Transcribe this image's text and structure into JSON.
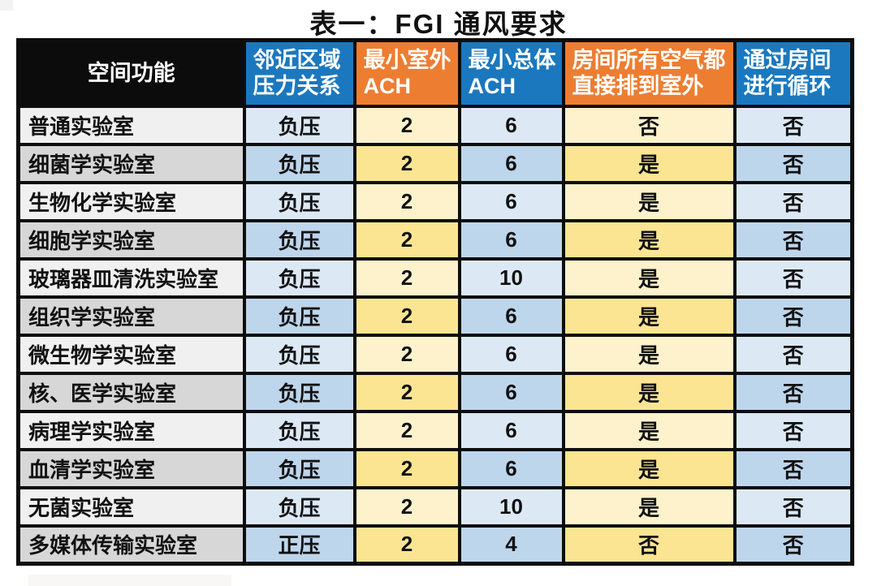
{
  "title": "表一：FGI 通风要求",
  "table": {
    "columns": [
      {
        "key": "name",
        "label": "空间功能",
        "header_color": "#0c0c0c",
        "body_style": "gray"
      },
      {
        "key": "pressure",
        "label": "邻近区域\n压力关系",
        "header_color": "#1b78be",
        "body_style": "blue"
      },
      {
        "key": "min_outdoor_ach",
        "label": "最小室外\nACH",
        "header_color": "#ed7d31",
        "body_style": "yellow"
      },
      {
        "key": "min_total_ach",
        "label": "最小总体\nACH",
        "header_color": "#1b78be",
        "body_style": "blue"
      },
      {
        "key": "exhaust_outdoor",
        "label": "房间所有空气都\n直接排到室外",
        "header_color": "#ed7d31",
        "body_style": "yellow"
      },
      {
        "key": "recirculate",
        "label": "通过房间\n进行循环",
        "header_color": "#1b78be",
        "body_style": "blue"
      }
    ],
    "rows": [
      {
        "name": "普通实验室",
        "pressure": "负压",
        "min_outdoor_ach": "2",
        "min_total_ach": "6",
        "exhaust_outdoor": "否",
        "recirculate": "否"
      },
      {
        "name": "细菌学实验室",
        "pressure": "负压",
        "min_outdoor_ach": "2",
        "min_total_ach": "6",
        "exhaust_outdoor": "是",
        "recirculate": "否"
      },
      {
        "name": "生物化学实验室",
        "pressure": "负压",
        "min_outdoor_ach": "2",
        "min_total_ach": "6",
        "exhaust_outdoor": "是",
        "recirculate": "否"
      },
      {
        "name": "细胞学实验室",
        "pressure": "负压",
        "min_outdoor_ach": "2",
        "min_total_ach": "6",
        "exhaust_outdoor": "是",
        "recirculate": "否"
      },
      {
        "name": "玻璃器皿清洗实验室",
        "pressure": "负压",
        "min_outdoor_ach": "2",
        "min_total_ach": "10",
        "exhaust_outdoor": "是",
        "recirculate": "否"
      },
      {
        "name": "组织学实验室",
        "pressure": "负压",
        "min_outdoor_ach": "2",
        "min_total_ach": "6",
        "exhaust_outdoor": "是",
        "recirculate": "否"
      },
      {
        "name": "微生物学实验室",
        "pressure": "负压",
        "min_outdoor_ach": "2",
        "min_total_ach": "6",
        "exhaust_outdoor": "是",
        "recirculate": "否"
      },
      {
        "name": "核、医学实验室",
        "pressure": "负压",
        "min_outdoor_ach": "2",
        "min_total_ach": "6",
        "exhaust_outdoor": "是",
        "recirculate": "否"
      },
      {
        "name": "病理学实验室",
        "pressure": "负压",
        "min_outdoor_ach": "2",
        "min_total_ach": "6",
        "exhaust_outdoor": "是",
        "recirculate": "否"
      },
      {
        "name": "血清学实验室",
        "pressure": "负压",
        "min_outdoor_ach": "2",
        "min_total_ach": "6",
        "exhaust_outdoor": "是",
        "recirculate": "否"
      },
      {
        "name": "无菌实验室",
        "pressure": "负压",
        "min_outdoor_ach": "2",
        "min_total_ach": "10",
        "exhaust_outdoor": "是",
        "recirculate": "否"
      },
      {
        "name": "多媒体传输实验室",
        "pressure": "正压",
        "min_outdoor_ach": "2",
        "min_total_ach": "4",
        "exhaust_outdoor": "否",
        "recirculate": "否"
      }
    ]
  },
  "colors": {
    "header_black": "#0c0c0c",
    "header_blue": "#1b78be",
    "header_orange": "#ed7d31",
    "row_gray_light": "#f1f0f0",
    "row_gray_dark": "#d8d7d7",
    "row_blue_light": "#dce9f5",
    "row_blue_dark": "#bed6ec",
    "row_yellow_light": "#fef2cc",
    "row_yellow_dark": "#fbe592",
    "border": "#0d0d0d"
  }
}
